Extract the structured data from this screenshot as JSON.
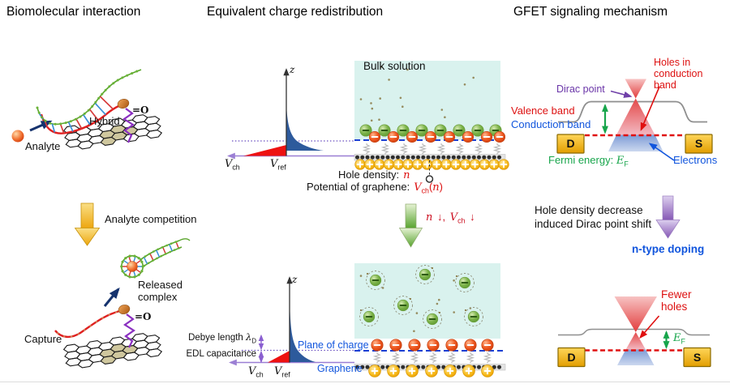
{
  "left": {
    "title": "Biomolecular interaction",
    "analyte": "Analyte",
    "hybrid": "Hybrid",
    "carbonyl": "=O",
    "competition": "Analyte competition",
    "released1": "Released",
    "released2": "complex",
    "capture": "Capture"
  },
  "middle": {
    "title": "Equivalent charge redistribution",
    "bulk": "Bulk solution",
    "z": "z",
    "v": "V",
    "vch_sub": "ch",
    "vref_sub": "ref",
    "hole_density": "Hole density:",
    "n": "n",
    "potential": "Potential of graphene:",
    "paren_open": "(",
    "paren_close": ")",
    "darr": "↓",
    "comma": ",",
    "debye": "Debye length",
    "lambda": "λ",
    "lambda_sub": "D",
    "edl": "EDL capacitance",
    "plane": "Plane of charge",
    "graphene": "Graphene"
  },
  "right": {
    "title": "GFET signaling mechanism",
    "dirac": "Dirac point",
    "holes1": "Holes in",
    "holes2": "conduction",
    "holes3": "band",
    "valence": "Valence band",
    "conduction": "Conduction band",
    "fermi": "Fermi energy:",
    "ef": "E",
    "ef_sub": "F",
    "electrons": "Electrons",
    "drain": "D",
    "source": "S",
    "shift1": "Hole density decrease",
    "shift2": "induced Dirac point shift",
    "ntype": "n-type doping",
    "fewer1": "Fewer",
    "fewer2": "holes"
  },
  "colors": {
    "accent_red": "#dd1111",
    "accent_blue": "#1155dd",
    "accent_green": "#17a54b",
    "accent_purple": "#6a35a8",
    "bulk_fill": "#d9f2ee",
    "gold": "#f0a800",
    "graphene_dot": "#2e2e2e"
  }
}
